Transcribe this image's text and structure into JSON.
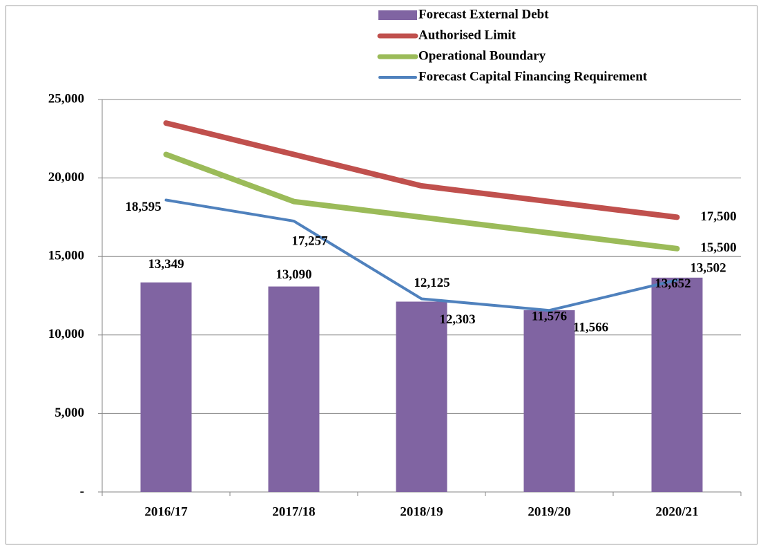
{
  "chart_data": {
    "type": "bar-line",
    "categories": [
      "2016/17",
      "2017/18",
      "2018/19",
      "2019/20",
      "2020/21"
    ],
    "series": [
      {
        "name": "Forecast External Debt",
        "type": "bar",
        "color": "#8064a2",
        "values": [
          13349,
          13090,
          12125,
          11576,
          13652
        ],
        "value_labels": [
          "13,349",
          "13,090",
          "12,125",
          "11,576",
          "13,652"
        ]
      },
      {
        "name": "Authorised Limit",
        "type": "line",
        "color": "#c0504d",
        "values": [
          23500,
          21500,
          19500,
          18500,
          17500
        ],
        "value_labels": [
          null,
          null,
          null,
          null,
          "17,500"
        ]
      },
      {
        "name": "Operational Boundary",
        "type": "line",
        "color": "#9bbb59",
        "values": [
          21500,
          18500,
          17500,
          16500,
          15500
        ],
        "value_labels": [
          null,
          null,
          null,
          null,
          "15,500"
        ]
      },
      {
        "name": "Forecast Capital Financing Requirement",
        "type": "line",
        "color": "#4f81bd",
        "values": [
          18595,
          17257,
          12303,
          11566,
          13502
        ],
        "value_labels": [
          "18,595",
          "17,257",
          "12,303",
          "11,566",
          "13,502"
        ]
      }
    ],
    "ylim": [
      0,
      25000
    ],
    "yticks": [
      {
        "value": 0,
        "label": "-"
      },
      {
        "value": 5000,
        "label": "5,000"
      },
      {
        "value": 10000,
        "label": "10,000"
      },
      {
        "value": 15000,
        "label": "15,000"
      },
      {
        "value": 20000,
        "label": "20,000"
      },
      {
        "value": 25000,
        "label": "25,000"
      }
    ],
    "grid": true,
    "legend": "top"
  }
}
